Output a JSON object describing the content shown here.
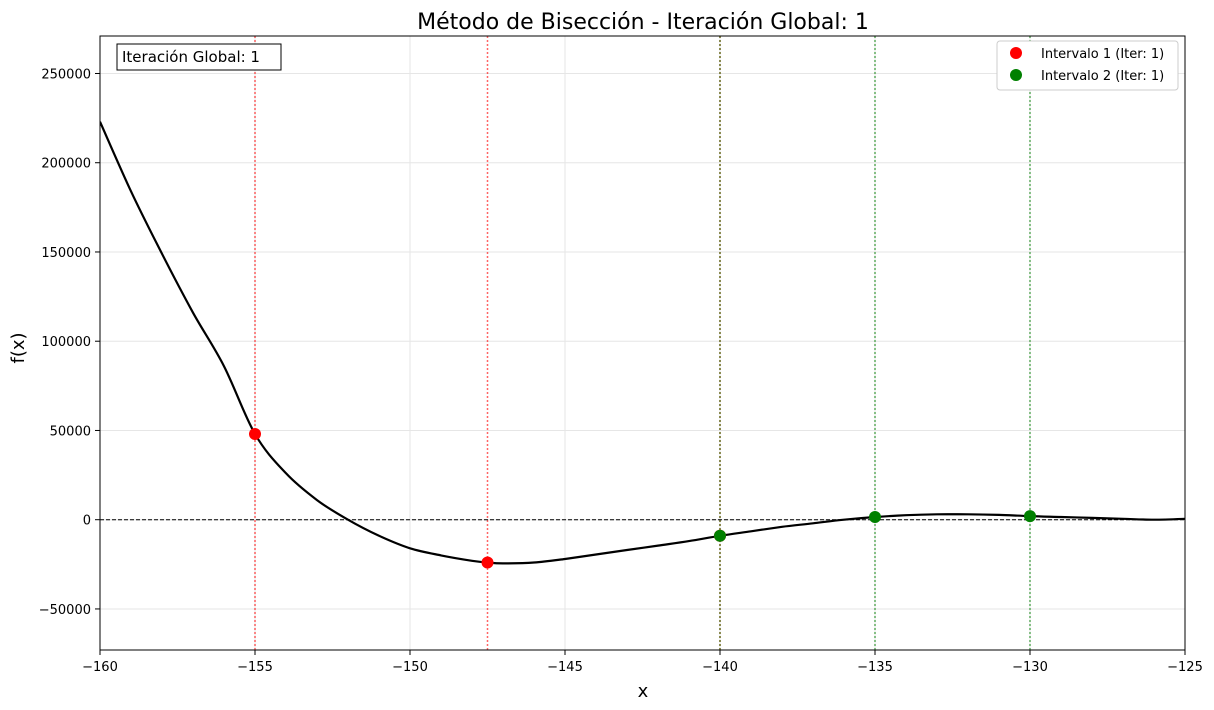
{
  "chart_data": {
    "type": "line",
    "title": "Método de Bisección - Iteración Global: 1",
    "xlabel": "x",
    "ylabel": "f(x)",
    "xlim": [
      -160,
      -125
    ],
    "ylim": [
      -73000,
      271000
    ],
    "xticks": [
      -160,
      -155,
      -150,
      -145,
      -140,
      -135,
      -130,
      -125
    ],
    "xtick_labels": [
      "−160",
      "−155",
      "−150",
      "−145",
      "−140",
      "−135",
      "−130",
      "−125"
    ],
    "yticks": [
      -50000,
      0,
      50000,
      100000,
      150000,
      200000,
      250000
    ],
    "ytick_labels": [
      "−50000",
      "0",
      "50000",
      "100000",
      "150000",
      "200000",
      "250000"
    ],
    "grid": true,
    "legend_position": "top-right",
    "annotation": "Iteración Global: 1",
    "curve": {
      "color": "#000000",
      "points": [
        [
          -160,
          223000
        ],
        [
          -159,
          184000
        ],
        [
          -158,
          149000
        ],
        [
          -157,
          116000
        ],
        [
          -156,
          86000
        ],
        [
          -155,
          48000
        ],
        [
          -154,
          26000
        ],
        [
          -153,
          11000
        ],
        [
          -152,
          0
        ],
        [
          -151,
          -9000
        ],
        [
          -150,
          -16000
        ],
        [
          -149,
          -20000
        ],
        [
          -148,
          -23000
        ],
        [
          -147.5,
          -24000
        ],
        [
          -147,
          -24500
        ],
        [
          -146,
          -24000
        ],
        [
          -145,
          -22000
        ],
        [
          -144,
          -19500
        ],
        [
          -143,
          -17000
        ],
        [
          -142,
          -14500
        ],
        [
          -141,
          -12000
        ],
        [
          -140,
          -9000
        ],
        [
          -139,
          -6500
        ],
        [
          -138,
          -4000
        ],
        [
          -137,
          -2000
        ],
        [
          -136,
          0
        ],
        [
          -135,
          1500
        ],
        [
          -134,
          2500
        ],
        [
          -133,
          3000
        ],
        [
          -132,
          3000
        ],
        [
          -131,
          2700
        ],
        [
          -130,
          2000
        ],
        [
          -129,
          1500
        ],
        [
          -128,
          1000
        ],
        [
          -127,
          500
        ],
        [
          -126,
          0
        ],
        [
          -125,
          500
        ]
      ]
    },
    "zero_line": {
      "y": 0,
      "color": "#000000"
    },
    "series": [
      {
        "name": "Intervalo 1 (Iter: 1)",
        "color": "#ff0000",
        "points": [
          [
            -155,
            48000
          ],
          [
            -147.5,
            -24000
          ],
          [
            -140,
            -9000
          ]
        ],
        "vlines": [
          -155,
          -147.5,
          -140
        ]
      },
      {
        "name": "Intervalo 2 (Iter: 1)",
        "color": "#008000",
        "points": [
          [
            -140,
            -9000
          ],
          [
            -135,
            1500
          ],
          [
            -130,
            2000
          ]
        ],
        "vlines": [
          -140,
          -135,
          -130
        ]
      }
    ]
  }
}
